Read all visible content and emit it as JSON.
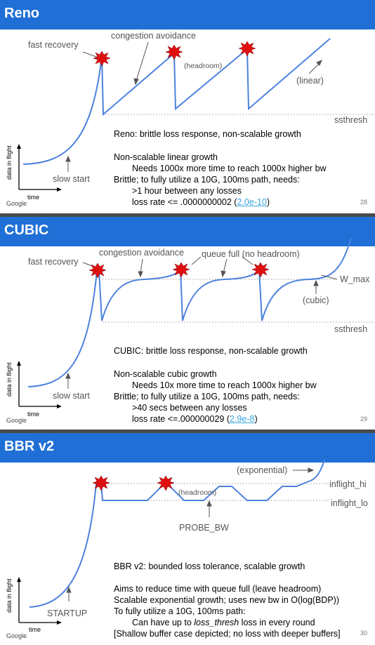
{
  "slides": [
    {
      "title": "Reno",
      "labels": {
        "fast_recovery": "fast recovery",
        "congestion_avoidance": "congestion avoidance",
        "headroom": "(headroom)",
        "linear": "(linear)",
        "ssthresh": "ssthresh",
        "slow_start": "slow start"
      },
      "axes": {
        "y": "data in flight",
        "x": "time"
      },
      "text": [
        "Reno: brittle loss response, non-scalable growth",
        "",
        "Non-scalable linear growth",
        "Needs 1000x more time to reach 1000x higher bw",
        "Brittle; to fully utilize a 10G, 100ms path, needs:",
        ">1 hour between any losses",
        "loss rate <= .0000000002  ("
      ],
      "link": "2.0e-10",
      "link_suffix": ")",
      "brand": "Google",
      "page": "28"
    },
    {
      "title": "CUBIC",
      "labels": {
        "fast_recovery": "fast recovery",
        "congestion_avoidance": "congestion avoidance",
        "queue_full": "queue full (no headroom)",
        "w_max": "W_max",
        "cubic": "(cubic)",
        "ssthresh": "ssthresh",
        "slow_start": "slow start"
      },
      "axes": {
        "y": "data in flight",
        "x": "time"
      },
      "text": [
        "CUBIC: brittle loss response, non-scalable growth",
        "",
        "Non-scalable cubic growth",
        "Needs 10x more time to reach 1000x higher bw",
        "Brittle; to fully utilize a 10G, 100ms path, needs:",
        ">40 secs between any losses",
        "loss rate <=.000000029  ("
      ],
      "link": "2.9e-8",
      "link_suffix": ")",
      "brand": "Google",
      "page": "29"
    },
    {
      "title": "BBR v2",
      "labels": {
        "exponential": "(exponential)",
        "headroom": "(headroom)",
        "inflight_hi": "inflight_hi",
        "inflight_lo": "inflight_lo",
        "probe_bw": "PROBE_BW",
        "startup": "STARTUP"
      },
      "axes": {
        "y": "data in flight",
        "x": "time"
      },
      "text": [
        "BBR v2: bounded loss tolerance, scalable growth",
        "",
        "Aims to reduce time with queue full (leave headroom)",
        "Scalable exponential growth; uses new bw in O(log(BDP))",
        "To fully utilize a 10G, 100ms path:",
        "Can have up to ",
        "loss_thresh",
        " loss in every round",
        "[Shallow buffer case depicted; no loss with deeper buffers]"
      ],
      "brand": "Google",
      "page": "30"
    }
  ],
  "colors": {
    "banner": "#1f6fd6",
    "curve": "#4d82dd",
    "burst": "#e01010",
    "link": "#3aa7e0"
  },
  "icons": [
    "loss-burst-icon",
    "arrow-icon"
  ]
}
